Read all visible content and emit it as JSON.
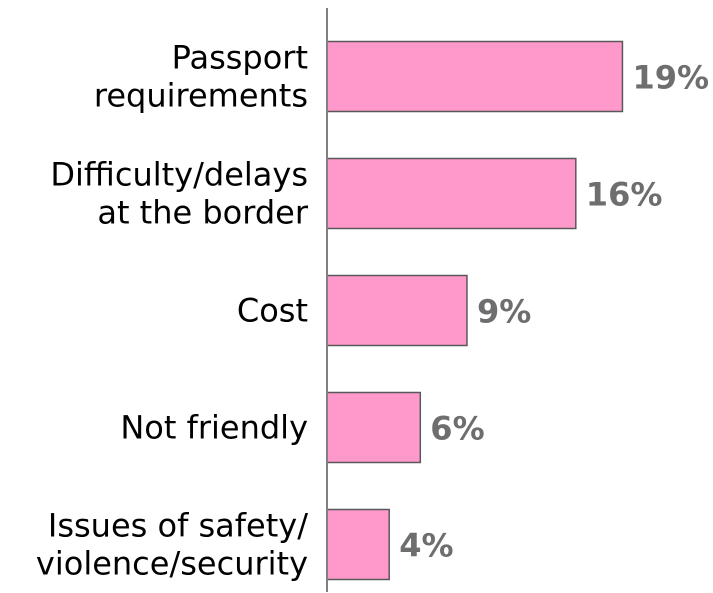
{
  "chart_data": {
    "type": "bar",
    "orientation": "horizontal",
    "categories": [
      [
        "Passport",
        "requirements"
      ],
      [
        "Difficulty/delays",
        "at the border"
      ],
      [
        "Cost"
      ],
      [
        "Not friendly"
      ],
      [
        "Issues of safety/",
        "violence/security"
      ]
    ],
    "values": [
      19,
      16,
      9,
      6,
      4
    ],
    "value_labels": [
      "19%",
      "16%",
      "9%",
      "6%",
      "4%"
    ],
    "unit": "%",
    "xlim": [
      0,
      20
    ],
    "grid": false,
    "legend": "none",
    "colors": {
      "bar_fill": "#ff99cc",
      "bar_stroke": "#595959",
      "axis": "#808080",
      "value_label": "#6e6e6e",
      "category_label": "#000000"
    }
  }
}
